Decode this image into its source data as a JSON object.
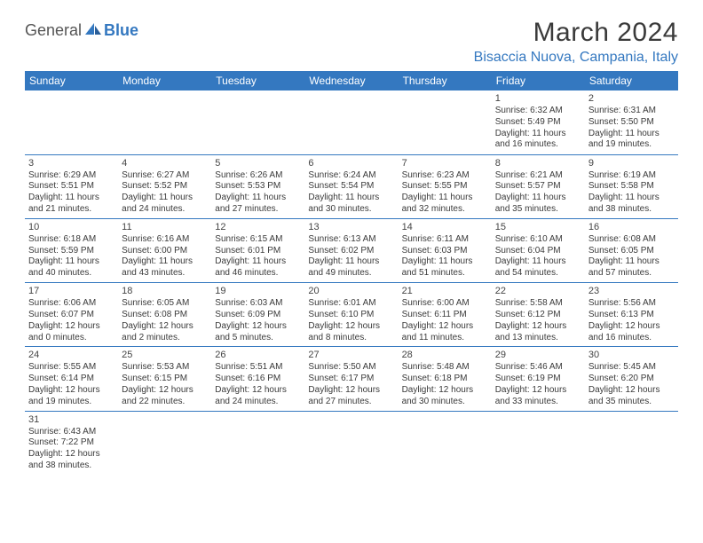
{
  "logo": {
    "text1": "General",
    "text2": "Blue"
  },
  "title": "March 2024",
  "location": "Bisaccia Nuova, Campania, Italy",
  "colors": {
    "header_bg": "#3478c0",
    "header_fg": "#ffffff",
    "border": "#3478c0",
    "text": "#3a3a3a",
    "location": "#3478c0"
  },
  "dayHeaders": [
    "Sunday",
    "Monday",
    "Tuesday",
    "Wednesday",
    "Thursday",
    "Friday",
    "Saturday"
  ],
  "weeks": [
    [
      null,
      null,
      null,
      null,
      null,
      {
        "n": "1",
        "sr": "Sunrise: 6:32 AM",
        "ss": "Sunset: 5:49 PM",
        "dl1": "Daylight: 11 hours",
        "dl2": "and 16 minutes."
      },
      {
        "n": "2",
        "sr": "Sunrise: 6:31 AM",
        "ss": "Sunset: 5:50 PM",
        "dl1": "Daylight: 11 hours",
        "dl2": "and 19 minutes."
      }
    ],
    [
      {
        "n": "3",
        "sr": "Sunrise: 6:29 AM",
        "ss": "Sunset: 5:51 PM",
        "dl1": "Daylight: 11 hours",
        "dl2": "and 21 minutes."
      },
      {
        "n": "4",
        "sr": "Sunrise: 6:27 AM",
        "ss": "Sunset: 5:52 PM",
        "dl1": "Daylight: 11 hours",
        "dl2": "and 24 minutes."
      },
      {
        "n": "5",
        "sr": "Sunrise: 6:26 AM",
        "ss": "Sunset: 5:53 PM",
        "dl1": "Daylight: 11 hours",
        "dl2": "and 27 minutes."
      },
      {
        "n": "6",
        "sr": "Sunrise: 6:24 AM",
        "ss": "Sunset: 5:54 PM",
        "dl1": "Daylight: 11 hours",
        "dl2": "and 30 minutes."
      },
      {
        "n": "7",
        "sr": "Sunrise: 6:23 AM",
        "ss": "Sunset: 5:55 PM",
        "dl1": "Daylight: 11 hours",
        "dl2": "and 32 minutes."
      },
      {
        "n": "8",
        "sr": "Sunrise: 6:21 AM",
        "ss": "Sunset: 5:57 PM",
        "dl1": "Daylight: 11 hours",
        "dl2": "and 35 minutes."
      },
      {
        "n": "9",
        "sr": "Sunrise: 6:19 AM",
        "ss": "Sunset: 5:58 PM",
        "dl1": "Daylight: 11 hours",
        "dl2": "and 38 minutes."
      }
    ],
    [
      {
        "n": "10",
        "sr": "Sunrise: 6:18 AM",
        "ss": "Sunset: 5:59 PM",
        "dl1": "Daylight: 11 hours",
        "dl2": "and 40 minutes."
      },
      {
        "n": "11",
        "sr": "Sunrise: 6:16 AM",
        "ss": "Sunset: 6:00 PM",
        "dl1": "Daylight: 11 hours",
        "dl2": "and 43 minutes."
      },
      {
        "n": "12",
        "sr": "Sunrise: 6:15 AM",
        "ss": "Sunset: 6:01 PM",
        "dl1": "Daylight: 11 hours",
        "dl2": "and 46 minutes."
      },
      {
        "n": "13",
        "sr": "Sunrise: 6:13 AM",
        "ss": "Sunset: 6:02 PM",
        "dl1": "Daylight: 11 hours",
        "dl2": "and 49 minutes."
      },
      {
        "n": "14",
        "sr": "Sunrise: 6:11 AM",
        "ss": "Sunset: 6:03 PM",
        "dl1": "Daylight: 11 hours",
        "dl2": "and 51 minutes."
      },
      {
        "n": "15",
        "sr": "Sunrise: 6:10 AM",
        "ss": "Sunset: 6:04 PM",
        "dl1": "Daylight: 11 hours",
        "dl2": "and 54 minutes."
      },
      {
        "n": "16",
        "sr": "Sunrise: 6:08 AM",
        "ss": "Sunset: 6:05 PM",
        "dl1": "Daylight: 11 hours",
        "dl2": "and 57 minutes."
      }
    ],
    [
      {
        "n": "17",
        "sr": "Sunrise: 6:06 AM",
        "ss": "Sunset: 6:07 PM",
        "dl1": "Daylight: 12 hours",
        "dl2": "and 0 minutes."
      },
      {
        "n": "18",
        "sr": "Sunrise: 6:05 AM",
        "ss": "Sunset: 6:08 PM",
        "dl1": "Daylight: 12 hours",
        "dl2": "and 2 minutes."
      },
      {
        "n": "19",
        "sr": "Sunrise: 6:03 AM",
        "ss": "Sunset: 6:09 PM",
        "dl1": "Daylight: 12 hours",
        "dl2": "and 5 minutes."
      },
      {
        "n": "20",
        "sr": "Sunrise: 6:01 AM",
        "ss": "Sunset: 6:10 PM",
        "dl1": "Daylight: 12 hours",
        "dl2": "and 8 minutes."
      },
      {
        "n": "21",
        "sr": "Sunrise: 6:00 AM",
        "ss": "Sunset: 6:11 PM",
        "dl1": "Daylight: 12 hours",
        "dl2": "and 11 minutes."
      },
      {
        "n": "22",
        "sr": "Sunrise: 5:58 AM",
        "ss": "Sunset: 6:12 PM",
        "dl1": "Daylight: 12 hours",
        "dl2": "and 13 minutes."
      },
      {
        "n": "23",
        "sr": "Sunrise: 5:56 AM",
        "ss": "Sunset: 6:13 PM",
        "dl1": "Daylight: 12 hours",
        "dl2": "and 16 minutes."
      }
    ],
    [
      {
        "n": "24",
        "sr": "Sunrise: 5:55 AM",
        "ss": "Sunset: 6:14 PM",
        "dl1": "Daylight: 12 hours",
        "dl2": "and 19 minutes."
      },
      {
        "n": "25",
        "sr": "Sunrise: 5:53 AM",
        "ss": "Sunset: 6:15 PM",
        "dl1": "Daylight: 12 hours",
        "dl2": "and 22 minutes."
      },
      {
        "n": "26",
        "sr": "Sunrise: 5:51 AM",
        "ss": "Sunset: 6:16 PM",
        "dl1": "Daylight: 12 hours",
        "dl2": "and 24 minutes."
      },
      {
        "n": "27",
        "sr": "Sunrise: 5:50 AM",
        "ss": "Sunset: 6:17 PM",
        "dl1": "Daylight: 12 hours",
        "dl2": "and 27 minutes."
      },
      {
        "n": "28",
        "sr": "Sunrise: 5:48 AM",
        "ss": "Sunset: 6:18 PM",
        "dl1": "Daylight: 12 hours",
        "dl2": "and 30 minutes."
      },
      {
        "n": "29",
        "sr": "Sunrise: 5:46 AM",
        "ss": "Sunset: 6:19 PM",
        "dl1": "Daylight: 12 hours",
        "dl2": "and 33 minutes."
      },
      {
        "n": "30",
        "sr": "Sunrise: 5:45 AM",
        "ss": "Sunset: 6:20 PM",
        "dl1": "Daylight: 12 hours",
        "dl2": "and 35 minutes."
      }
    ],
    [
      {
        "n": "31",
        "sr": "Sunrise: 6:43 AM",
        "ss": "Sunset: 7:22 PM",
        "dl1": "Daylight: 12 hours",
        "dl2": "and 38 minutes."
      },
      null,
      null,
      null,
      null,
      null,
      null
    ]
  ]
}
